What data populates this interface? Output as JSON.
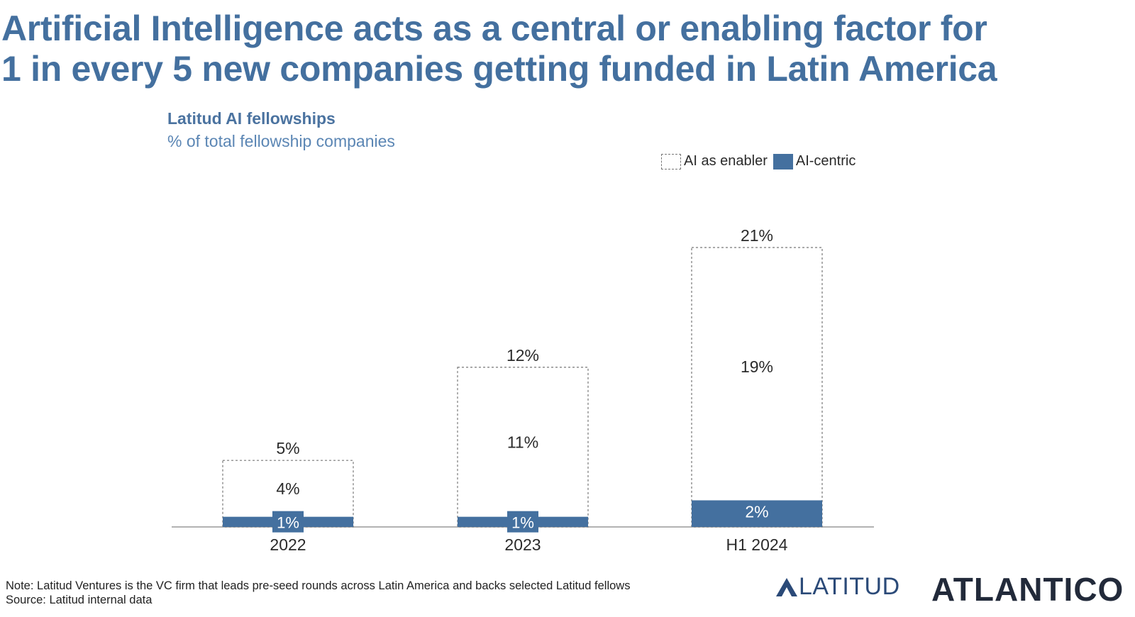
{
  "headline": {
    "line1": "Artificial Intelligence acts as a central or enabling factor for",
    "line2": "1 in every 5 new companies getting funded in Latin America"
  },
  "colors": {
    "title": "#44709f",
    "ai_centric": "#44709f",
    "enabler_border": "#777777",
    "logo_latitud": "#2b4a78",
    "logo_atlantico": "#222a3a"
  },
  "chart_data": {
    "type": "bar",
    "stacked": true,
    "title": "Latitud AI fellowships",
    "subtitle": "% of total fellowship companies",
    "categories": [
      "2022",
      "2023",
      "H1 2024"
    ],
    "series": [
      {
        "name": "AI-centric",
        "values": [
          1,
          1,
          2
        ],
        "labels": [
          "1%",
          "1%",
          "2%"
        ],
        "color": "#44709f",
        "style": "filled"
      },
      {
        "name": "AI as enabler",
        "values": [
          4,
          11,
          19
        ],
        "labels": [
          "4%",
          "11%",
          "19%"
        ],
        "color": "#777777",
        "style": "dashed-outline"
      }
    ],
    "totals": [
      5,
      12,
      21
    ],
    "total_labels": [
      "5%",
      "12%",
      "21%"
    ],
    "legend": {
      "position": "top-right",
      "entries": [
        "AI as enabler",
        "AI-centric"
      ]
    },
    "ylim": [
      0,
      21
    ],
    "grid": false
  },
  "footer": {
    "note": "Note: Latitud Ventures is the VC firm that leads pre-seed rounds across Latin America and backs selected Latitud fellows",
    "source": "Source: Latitud internal data"
  },
  "logos": {
    "latitud": "LATITUD",
    "atlantico": "ATLANTICO"
  }
}
